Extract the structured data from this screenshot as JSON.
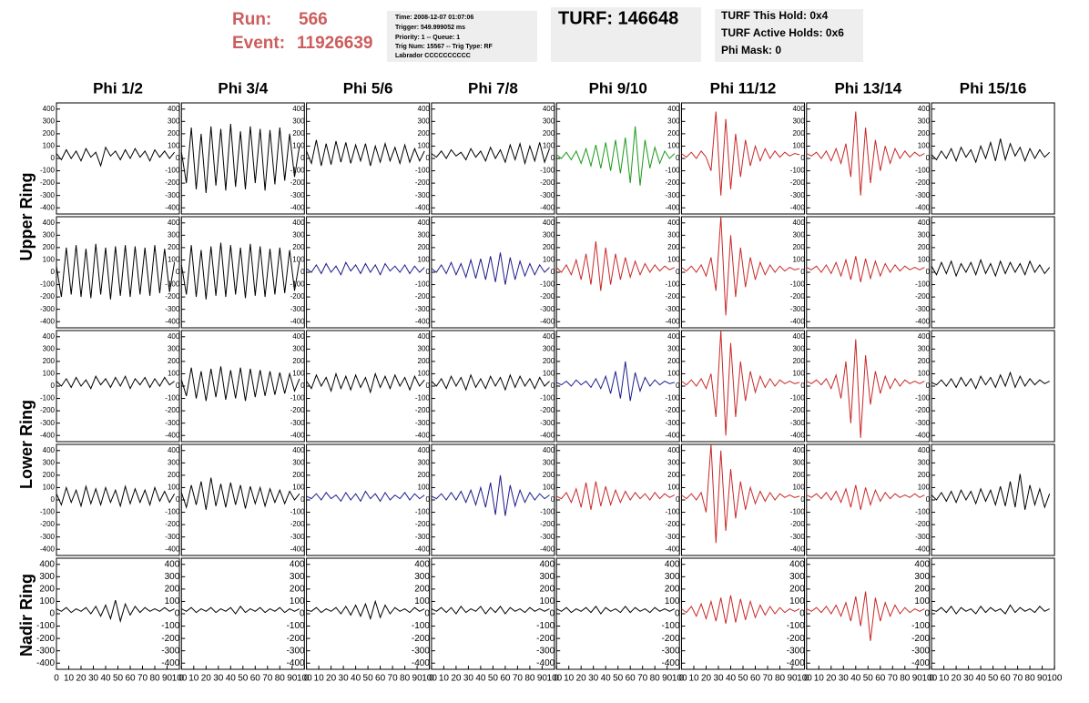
{
  "header": {
    "run_label": "Run:",
    "run": "566",
    "event_label": "Event:",
    "event": "11926639",
    "info": [
      "Time: 2008-12-07 01:07:06",
      "Trigger: 549.999052 ms",
      "Priority: 1 -- Queue: 1",
      "Trig Num: 15567 -- Trig Type: RF",
      "Labrador CCCCCCCCCC"
    ],
    "turf": "TURF: 146648",
    "holds": [
      "TURF This Hold: 0x4",
      "TURF Active Holds: 0x6",
      "Phi Mask: 0"
    ]
  },
  "chart_data": {
    "type": "line",
    "columns": [
      "Phi 1/2",
      "Phi 3/4",
      "Phi 5/6",
      "Phi 7/8",
      "Phi 9/10",
      "Phi 11/12",
      "Phi 13/14",
      "Phi 15/16"
    ],
    "rows": [
      "Upper Ring",
      "Lower Ring",
      "Nadir Ring"
    ],
    "xlim": [
      0,
      100
    ],
    "xticks": [
      0,
      10,
      20,
      30,
      40,
      50,
      60,
      70,
      80,
      90,
      100
    ],
    "ylim": [
      -450,
      450
    ],
    "yticks": [
      -400,
      -300,
      -200,
      -100,
      0,
      100,
      200,
      300,
      400
    ],
    "x": [
      0,
      4,
      8,
      12,
      16,
      20,
      24,
      28,
      32,
      36,
      40,
      44,
      48,
      52,
      56,
      60,
      64,
      68,
      72,
      76,
      80,
      84,
      88,
      92,
      96
    ],
    "panels": [
      {
        "color": "#000000",
        "values": [
          40,
          -10,
          70,
          0,
          60,
          -20,
          80,
          10,
          50,
          -60,
          90,
          20,
          60,
          -10,
          70,
          0,
          80,
          10,
          60,
          -20,
          70,
          10,
          60,
          0,
          50
        ]
      },
      {
        "color": "#000000",
        "values": [
          50,
          -200,
          250,
          -250,
          200,
          -280,
          260,
          -220,
          240,
          -260,
          280,
          -230,
          220,
          -250,
          260,
          -200,
          240,
          -260,
          230,
          -210,
          250,
          -180,
          200,
          -150,
          100
        ]
      },
      {
        "color": "#000000",
        "values": [
          60,
          -40,
          150,
          -60,
          120,
          -50,
          140,
          -30,
          130,
          -40,
          110,
          -20,
          120,
          -60,
          100,
          -30,
          120,
          -20,
          90,
          -40,
          110,
          -30,
          80,
          -20,
          60
        ]
      },
      {
        "color": "#000000",
        "values": [
          40,
          10,
          60,
          0,
          70,
          20,
          50,
          -10,
          80,
          10,
          60,
          -20,
          90,
          0,
          70,
          -30,
          110,
          -10,
          120,
          -40,
          100,
          -20,
          130,
          -30,
          80
        ]
      },
      {
        "color": "#1a9a1a",
        "values": [
          30,
          0,
          50,
          -10,
          60,
          -40,
          80,
          -60,
          110,
          -80,
          130,
          -100,
          150,
          -120,
          170,
          -200,
          260,
          -220,
          150,
          -80,
          90,
          -40,
          60,
          0,
          40
        ]
      },
      {
        "color": "#c82828",
        "values": [
          40,
          10,
          50,
          0,
          60,
          10,
          -100,
          380,
          -300,
          320,
          -250,
          200,
          -150,
          150,
          -60,
          100,
          -20,
          80,
          0,
          60,
          10,
          50,
          20,
          40,
          30
        ]
      },
      {
        "color": "#c82828",
        "values": [
          40,
          20,
          50,
          0,
          60,
          -20,
          80,
          -40,
          120,
          -150,
          380,
          -300,
          250,
          -200,
          150,
          -100,
          100,
          -40,
          80,
          0,
          60,
          10,
          50,
          20,
          40
        ]
      },
      {
        "color": "#000000",
        "values": [
          30,
          -10,
          60,
          0,
          80,
          -20,
          90,
          10,
          70,
          -30,
          100,
          0,
          130,
          -20,
          160,
          -10,
          120,
          20,
          90,
          -20,
          80,
          0,
          70,
          10,
          50
        ]
      },
      {
        "color": "#000000",
        "values": [
          50,
          -200,
          200,
          -180,
          220,
          -200,
          190,
          -210,
          230,
          -180,
          200,
          -220,
          210,
          -190,
          220,
          -200,
          210,
          -180,
          200,
          -190,
          220,
          -170,
          190,
          -160,
          80
        ]
      },
      {
        "color": "#000000",
        "values": [
          60,
          -180,
          220,
          -200,
          180,
          -220,
          210,
          -190,
          240,
          -200,
          220,
          -180,
          200,
          -210,
          230,
          -190,
          210,
          -200,
          190,
          -180,
          200,
          -170,
          180,
          -150,
          90
        ]
      },
      {
        "color": "#1c1c8c",
        "values": [
          30,
          0,
          60,
          -10,
          70,
          0,
          50,
          -20,
          80,
          10,
          60,
          -10,
          70,
          0,
          60,
          -20,
          70,
          10,
          50,
          0,
          60,
          -10,
          50,
          0,
          40
        ]
      },
      {
        "color": "#1c1c8c",
        "values": [
          30,
          0,
          60,
          -10,
          80,
          -20,
          70,
          -40,
          100,
          -50,
          110,
          -60,
          130,
          -80,
          160,
          -100,
          120,
          -60,
          90,
          -30,
          70,
          -20,
          60,
          0,
          40
        ]
      },
      {
        "color": "#c82828",
        "values": [
          40,
          0,
          60,
          -20,
          100,
          -60,
          150,
          -100,
          250,
          -150,
          200,
          -100,
          150,
          -60,
          120,
          -40,
          90,
          -20,
          70,
          0,
          60,
          10,
          50,
          20,
          40
        ]
      },
      {
        "color": "#c82828",
        "values": [
          40,
          10,
          50,
          0,
          60,
          -30,
          120,
          -150,
          450,
          -350,
          300,
          -200,
          200,
          -120,
          120,
          -60,
          80,
          -20,
          60,
          0,
          50,
          10,
          40,
          20,
          30
        ]
      },
      {
        "color": "#c82828",
        "values": [
          40,
          20,
          50,
          0,
          60,
          -10,
          80,
          -30,
          100,
          -60,
          130,
          -80,
          110,
          -50,
          90,
          -30,
          70,
          0,
          60,
          10,
          50,
          20,
          40,
          20,
          40
        ]
      },
      {
        "color": "#000000",
        "values": [
          50,
          -20,
          80,
          -10,
          90,
          -30,
          70,
          0,
          80,
          -20,
          100,
          -10,
          70,
          -30,
          90,
          -10,
          80,
          0,
          70,
          -20,
          90,
          0,
          60,
          -10,
          40
        ]
      },
      {
        "color": "#000000",
        "values": [
          40,
          0,
          60,
          -10,
          70,
          0,
          50,
          -20,
          80,
          10,
          60,
          -10,
          70,
          0,
          80,
          -20,
          60,
          10,
          70,
          -10,
          60,
          0,
          70,
          10,
          40
        ]
      },
      {
        "color": "#000000",
        "values": [
          50,
          -80,
          150,
          -100,
          120,
          -120,
          140,
          -90,
          160,
          -110,
          130,
          -100,
          150,
          -120,
          140,
          -90,
          130,
          -80,
          120,
          -70,
          110,
          -60,
          100,
          -40,
          60
        ]
      },
      {
        "color": "#000000",
        "values": [
          40,
          -20,
          90,
          0,
          70,
          -40,
          100,
          -20,
          80,
          -30,
          90,
          -10,
          70,
          -50,
          100,
          -10,
          80,
          -20,
          90,
          0,
          70,
          -30,
          80,
          0,
          50
        ]
      },
      {
        "color": "#000000",
        "values": [
          40,
          0,
          60,
          -20,
          80,
          0,
          70,
          -30,
          90,
          -10,
          60,
          -20,
          80,
          0,
          70,
          -30,
          90,
          -10,
          80,
          0,
          60,
          -20,
          70,
          0,
          40
        ]
      },
      {
        "color": "#1c1c8c",
        "values": [
          30,
          10,
          40,
          0,
          50,
          10,
          40,
          -10,
          60,
          -20,
          80,
          -60,
          120,
          -100,
          200,
          -120,
          110,
          -40,
          70,
          0,
          50,
          10,
          40,
          20,
          30
        ]
      },
      {
        "color": "#c82828",
        "values": [
          40,
          10,
          50,
          0,
          60,
          -20,
          100,
          -250,
          450,
          -400,
          350,
          -250,
          200,
          -120,
          120,
          -50,
          80,
          -10,
          60,
          0,
          50,
          20,
          40,
          20,
          30
        ]
      },
      {
        "color": "#c82828",
        "values": [
          40,
          20,
          50,
          10,
          60,
          -20,
          90,
          -100,
          200,
          -300,
          380,
          -420,
          250,
          -150,
          120,
          -60,
          80,
          -20,
          60,
          0,
          50,
          20,
          40,
          20,
          40
        ]
      },
      {
        "color": "#000000",
        "values": [
          30,
          10,
          50,
          0,
          60,
          -10,
          70,
          0,
          60,
          -20,
          80,
          10,
          70,
          -10,
          90,
          0,
          110,
          -10,
          80,
          0,
          60,
          10,
          50,
          20,
          40
        ]
      },
      {
        "color": "#000000",
        "values": [
          50,
          -40,
          100,
          -20,
          80,
          -50,
          110,
          -30,
          90,
          -40,
          100,
          -20,
          80,
          -50,
          110,
          -30,
          90,
          -20,
          80,
          -40,
          100,
          -10,
          70,
          -20,
          50
        ]
      },
      {
        "color": "#000000",
        "values": [
          60,
          -60,
          120,
          -40,
          150,
          -80,
          180,
          -50,
          130,
          -60,
          140,
          -40,
          120,
          -70,
          110,
          -30,
          100,
          -50,
          90,
          -20,
          80,
          -30,
          70,
          0,
          50
        ]
      },
      {
        "color": "#1c1c8c",
        "values": [
          30,
          10,
          50,
          0,
          60,
          10,
          40,
          -10,
          60,
          0,
          50,
          -10,
          70,
          10,
          50,
          -10,
          60,
          0,
          40,
          10,
          60,
          0,
          50,
          10,
          40
        ]
      },
      {
        "color": "#1c1c8c",
        "values": [
          30,
          10,
          50,
          0,
          60,
          0,
          70,
          -20,
          80,
          -40,
          100,
          -60,
          140,
          -120,
          200,
          -130,
          120,
          -50,
          80,
          -20,
          60,
          0,
          50,
          10,
          40
        ]
      },
      {
        "color": "#c82828",
        "values": [
          30,
          10,
          60,
          -20,
          90,
          -60,
          140,
          -80,
          150,
          -50,
          110,
          -40,
          80,
          -20,
          70,
          0,
          60,
          10,
          50,
          0,
          60,
          10,
          50,
          20,
          40
        ]
      },
      {
        "color": "#c82828",
        "values": [
          40,
          10,
          50,
          0,
          60,
          -100,
          450,
          -350,
          400,
          -250,
          250,
          -150,
          150,
          -80,
          100,
          -30,
          70,
          -10,
          60,
          0,
          50,
          20,
          40,
          20,
          30
        ]
      },
      {
        "color": "#c82828",
        "values": [
          40,
          20,
          50,
          10,
          60,
          0,
          70,
          -20,
          90,
          -60,
          120,
          -80,
          100,
          -40,
          80,
          -10,
          60,
          10,
          50,
          20,
          40,
          20,
          50,
          20,
          40
        ]
      },
      {
        "color": "#000000",
        "values": [
          40,
          0,
          60,
          -10,
          70,
          -20,
          80,
          0,
          70,
          -30,
          90,
          -10,
          80,
          -40,
          110,
          -50,
          150,
          -60,
          210,
          -80,
          120,
          -40,
          90,
          -60,
          50
        ]
      },
      {
        "color": "#000000",
        "values": [
          40,
          20,
          50,
          10,
          40,
          20,
          50,
          0,
          60,
          -20,
          70,
          -40,
          110,
          -60,
          80,
          -10,
          60,
          10,
          50,
          20,
          40,
          20,
          50,
          20,
          40
        ]
      },
      {
        "color": "#000000",
        "values": [
          40,
          20,
          50,
          10,
          40,
          20,
          50,
          10,
          40,
          20,
          50,
          0,
          60,
          10,
          40,
          20,
          50,
          10,
          40,
          20,
          50,
          10,
          40,
          20,
          40
        ]
      },
      {
        "color": "#000000",
        "values": [
          30,
          20,
          50,
          10,
          40,
          20,
          50,
          0,
          60,
          -10,
          70,
          -20,
          80,
          -40,
          100,
          -30,
          70,
          0,
          50,
          20,
          40,
          10,
          50,
          20,
          40
        ]
      },
      {
        "color": "#000000",
        "values": [
          40,
          20,
          50,
          10,
          50,
          0,
          60,
          10,
          40,
          20,
          60,
          0,
          50,
          10,
          60,
          0,
          50,
          20,
          40,
          10,
          50,
          20,
          40,
          20,
          40
        ]
      },
      {
        "color": "#000000",
        "values": [
          40,
          20,
          50,
          10,
          40,
          20,
          50,
          10,
          60,
          0,
          50,
          20,
          40,
          10,
          60,
          10,
          50,
          20,
          40,
          10,
          50,
          20,
          40,
          20,
          40
        ]
      },
      {
        "color": "#c82828",
        "values": [
          40,
          10,
          60,
          -20,
          80,
          -40,
          100,
          -60,
          130,
          -80,
          150,
          -70,
          120,
          -50,
          100,
          -30,
          70,
          -10,
          60,
          0,
          50,
          10,
          40,
          20,
          40
        ]
      },
      {
        "color": "#c82828",
        "values": [
          40,
          20,
          50,
          10,
          60,
          0,
          70,
          -20,
          90,
          -60,
          140,
          -100,
          180,
          -220,
          130,
          -60,
          90,
          -20,
          70,
          0,
          50,
          10,
          40,
          20,
          40
        ]
      },
      {
        "color": "#000000",
        "values": [
          30,
          20,
          50,
          10,
          60,
          0,
          50,
          20,
          40,
          0,
          60,
          10,
          50,
          20,
          40,
          0,
          70,
          10,
          50,
          20,
          40,
          10,
          60,
          20,
          40
        ]
      }
    ]
  }
}
